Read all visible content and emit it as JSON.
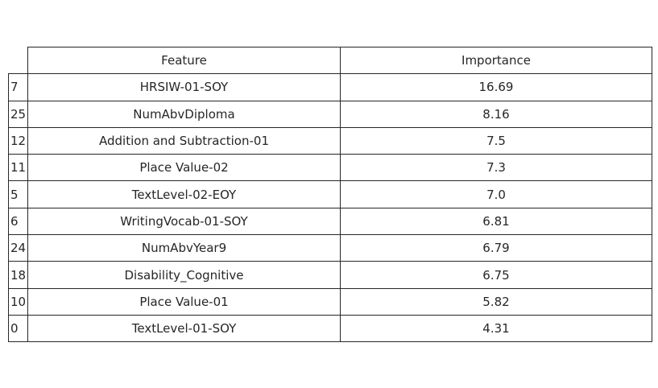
{
  "chart_data": {
    "type": "table",
    "columns": [
      "Feature",
      "Importance"
    ],
    "rows": [
      {
        "index": "7",
        "feature": "HRSIW-01-SOY",
        "importance": "16.69"
      },
      {
        "index": "25",
        "feature": "NumAbvDiploma",
        "importance": "8.16"
      },
      {
        "index": "12",
        "feature": "Addition and Subtraction-01",
        "importance": "7.5"
      },
      {
        "index": "11",
        "feature": "Place Value-02",
        "importance": "7.3"
      },
      {
        "index": "5",
        "feature": "TextLevel-02-EOY",
        "importance": "7.0"
      },
      {
        "index": "6",
        "feature": "WritingVocab-01-SOY",
        "importance": "6.81"
      },
      {
        "index": "24",
        "feature": "NumAbvYear9",
        "importance": "6.79"
      },
      {
        "index": "18",
        "feature": "Disability_Cognitive",
        "importance": "6.75"
      },
      {
        "index": "10",
        "feature": "Place Value-01",
        "importance": "5.82"
      },
      {
        "index": "0",
        "feature": "TextLevel-01-SOY",
        "importance": "4.31"
      }
    ]
  }
}
